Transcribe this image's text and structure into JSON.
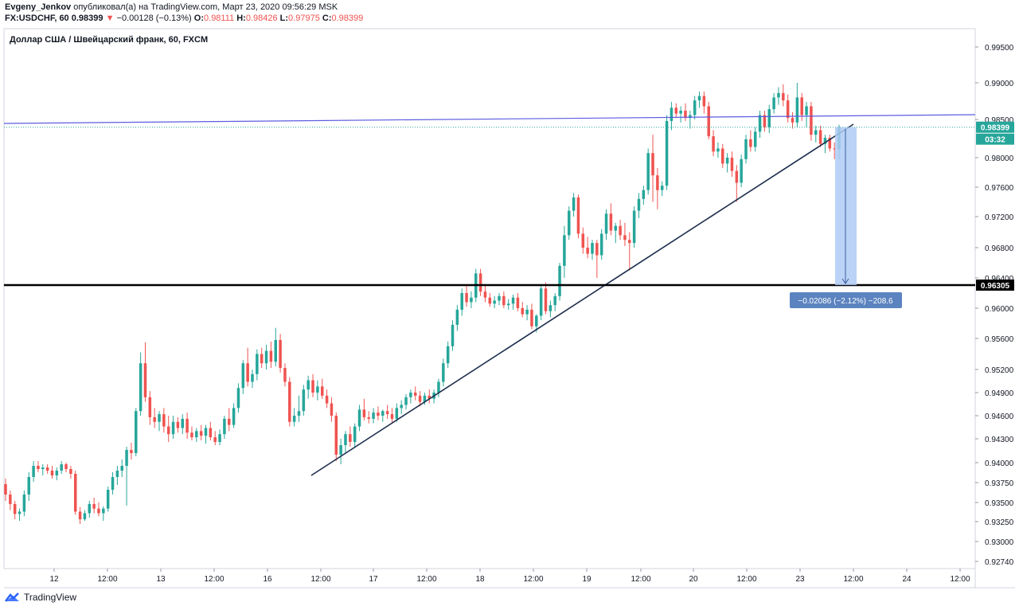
{
  "header": {
    "author": "Evgeny_Jenkov",
    "published_text": "опубликовал(а) на TradingView.com, Март 23, 2020 09:56:29 MSK",
    "symbol": "FX:USDCHF, 60",
    "last": "0.98399",
    "change_arrow": "▼",
    "change": "−0.00128 (−0.13%)",
    "o_label": "O:",
    "o_value": "0.98111",
    "h_label": "H:",
    "h_value": "0.98426",
    "l_label": "L:",
    "l_value": "0.97975",
    "c_label": "C:",
    "c_value": "0.98399"
  },
  "footer": {
    "brand": "TradingView",
    "logo_icon": "tradingview-logo-icon"
  },
  "colors": {
    "up": "#26a69a",
    "down": "#ef5350",
    "trendline": "#1e2f4d",
    "resistance": "#5c5ce0",
    "support": "#000000",
    "measure_fill": "#aecbf5",
    "measure_label_bg": "#5b83bf"
  },
  "chart_data": {
    "type": "candlestick",
    "title": "Доллар США / Швейцарский франк, 60, FXCM",
    "y_ticks": [
      "0.99500",
      "0.99000",
      "0.98500",
      "0.98000",
      "0.97600",
      "0.97200",
      "0.96800",
      "0.96400",
      "0.96000",
      "0.95600",
      "0.95200",
      "0.94900",
      "0.94600",
      "0.94300",
      "0.94000",
      "0.93750",
      "0.93500",
      "0.93250",
      "0.93000",
      "0.92740"
    ],
    "x_ticks": [
      "12",
      "12:00",
      "13",
      "12:00",
      "16",
      "12:00",
      "17",
      "12:00",
      "18",
      "12:00",
      "19",
      "12:00",
      "20",
      "12:00",
      "23",
      "12:00",
      "24",
      "12:00"
    ],
    "price_badge": "0.98399",
    "countdown_badge": "03:32",
    "support_level": "0.96305",
    "measure_label": "−0.02086 (−2.12%) −208.6",
    "ohlc": [
      [
        0.9373,
        0.938,
        0.9352,
        0.936
      ],
      [
        0.936,
        0.9365,
        0.934,
        0.9348
      ],
      [
        0.9348,
        0.9352,
        0.9328,
        0.9335
      ],
      [
        0.9335,
        0.9342,
        0.9326,
        0.9338
      ],
      [
        0.9338,
        0.9365,
        0.9332,
        0.936
      ],
      [
        0.936,
        0.9388,
        0.9352,
        0.9382
      ],
      [
        0.9382,
        0.9402,
        0.9376,
        0.9396
      ],
      [
        0.9396,
        0.9402,
        0.9388,
        0.9392
      ],
      [
        0.9392,
        0.9398,
        0.9384,
        0.9394
      ],
      [
        0.9394,
        0.9398,
        0.9386,
        0.939
      ],
      [
        0.939,
        0.9396,
        0.938,
        0.9384
      ],
      [
        0.9384,
        0.9394,
        0.9378,
        0.939
      ],
      [
        0.939,
        0.9402,
        0.9386,
        0.9398
      ],
      [
        0.9398,
        0.94,
        0.9388,
        0.9392
      ],
      [
        0.9392,
        0.9396,
        0.938,
        0.9386
      ],
      [
        0.9386,
        0.939,
        0.9334,
        0.9338
      ],
      [
        0.9338,
        0.9344,
        0.9322,
        0.9328
      ],
      [
        0.9328,
        0.934,
        0.9326,
        0.9336
      ],
      [
        0.9336,
        0.9352,
        0.933,
        0.9348
      ],
      [
        0.9348,
        0.9356,
        0.9336,
        0.9342
      ],
      [
        0.9342,
        0.935,
        0.9332,
        0.9336
      ],
      [
        0.9336,
        0.9345,
        0.9326,
        0.9342
      ],
      [
        0.9342,
        0.937,
        0.9338,
        0.9366
      ],
      [
        0.9366,
        0.9388,
        0.936,
        0.9382
      ],
      [
        0.9382,
        0.9396,
        0.9372,
        0.939
      ],
      [
        0.939,
        0.9404,
        0.9382,
        0.9396
      ],
      [
        0.9396,
        0.942,
        0.9346,
        0.9416
      ],
      [
        0.9416,
        0.9425,
        0.9404,
        0.9412
      ],
      [
        0.9412,
        0.947,
        0.9408,
        0.9466
      ],
      [
        0.9466,
        0.9542,
        0.946,
        0.9528
      ],
      [
        0.9528,
        0.9555,
        0.9478,
        0.9484
      ],
      [
        0.9484,
        0.9492,
        0.9448,
        0.9458
      ],
      [
        0.9458,
        0.947,
        0.9444,
        0.9452
      ],
      [
        0.9452,
        0.9466,
        0.944,
        0.9462
      ],
      [
        0.9462,
        0.947,
        0.9438,
        0.9446
      ],
      [
        0.9446,
        0.946,
        0.9426,
        0.9436
      ],
      [
        0.9436,
        0.946,
        0.943,
        0.9452
      ],
      [
        0.9452,
        0.9458,
        0.9438,
        0.9444
      ],
      [
        0.9444,
        0.9462,
        0.9436,
        0.9456
      ],
      [
        0.9456,
        0.9464,
        0.943,
        0.9438
      ],
      [
        0.9438,
        0.9446,
        0.9428,
        0.9432
      ],
      [
        0.9432,
        0.9444,
        0.9426,
        0.944
      ],
      [
        0.944,
        0.9448,
        0.9428,
        0.9434
      ],
      [
        0.9434,
        0.9448,
        0.9424,
        0.9444
      ],
      [
        0.9444,
        0.9452,
        0.9428,
        0.9432
      ],
      [
        0.9432,
        0.944,
        0.9422,
        0.9426
      ],
      [
        0.9426,
        0.9442,
        0.9422,
        0.9436
      ],
      [
        0.9436,
        0.946,
        0.943,
        0.9456
      ],
      [
        0.9456,
        0.947,
        0.944,
        0.9448
      ],
      [
        0.9448,
        0.9476,
        0.9444,
        0.947
      ],
      [
        0.947,
        0.9502,
        0.9464,
        0.9496
      ],
      [
        0.9496,
        0.9532,
        0.9488,
        0.9528
      ],
      [
        0.9528,
        0.9548,
        0.9498,
        0.9504
      ],
      [
        0.9504,
        0.952,
        0.9496,
        0.9514
      ],
      [
        0.9514,
        0.9546,
        0.9506,
        0.954
      ],
      [
        0.954,
        0.9548,
        0.9522,
        0.9528
      ],
      [
        0.9528,
        0.9552,
        0.952,
        0.9544
      ],
      [
        0.9544,
        0.9556,
        0.9522,
        0.953
      ],
      [
        0.953,
        0.9574,
        0.9524,
        0.9558
      ],
      [
        0.9558,
        0.9566,
        0.9516,
        0.9522
      ],
      [
        0.9522,
        0.9528,
        0.9498,
        0.9504
      ],
      [
        0.9504,
        0.951,
        0.9446,
        0.9452
      ],
      [
        0.9452,
        0.947,
        0.9446,
        0.946
      ],
      [
        0.946,
        0.9486,
        0.9452,
        0.9466
      ],
      [
        0.9466,
        0.95,
        0.946,
        0.9494
      ],
      [
        0.9494,
        0.9512,
        0.9482,
        0.9506
      ],
      [
        0.9506,
        0.9514,
        0.9484,
        0.949
      ],
      [
        0.949,
        0.9506,
        0.948,
        0.9498
      ],
      [
        0.9498,
        0.9508,
        0.9482,
        0.9486
      ],
      [
        0.9486,
        0.9494,
        0.947,
        0.9476
      ],
      [
        0.9476,
        0.9484,
        0.9452,
        0.946
      ],
      [
        0.946,
        0.9464,
        0.9402,
        0.941
      ],
      [
        0.941,
        0.943,
        0.9398,
        0.9422
      ],
      [
        0.9422,
        0.944,
        0.9412,
        0.9436
      ],
      [
        0.9436,
        0.9446,
        0.942,
        0.9426
      ],
      [
        0.9426,
        0.945,
        0.942,
        0.9446
      ],
      [
        0.9446,
        0.9474,
        0.944,
        0.9468
      ],
      [
        0.9468,
        0.9482,
        0.9454,
        0.9458
      ],
      [
        0.9458,
        0.9466,
        0.945,
        0.9456
      ],
      [
        0.9456,
        0.947,
        0.945,
        0.9464
      ],
      [
        0.9464,
        0.9472,
        0.9454,
        0.946
      ],
      [
        0.946,
        0.9468,
        0.9452,
        0.9466
      ],
      [
        0.9466,
        0.9474,
        0.9456,
        0.9462
      ],
      [
        0.9462,
        0.947,
        0.945,
        0.9456
      ],
      [
        0.9456,
        0.9476,
        0.9452,
        0.947
      ],
      [
        0.947,
        0.948,
        0.9462,
        0.9474
      ],
      [
        0.9474,
        0.9488,
        0.9468,
        0.9484
      ],
      [
        0.9484,
        0.9494,
        0.9476,
        0.949
      ],
      [
        0.949,
        0.9498,
        0.948,
        0.9486
      ],
      [
        0.9486,
        0.9492,
        0.9472,
        0.9478
      ],
      [
        0.9478,
        0.949,
        0.9474,
        0.9486
      ],
      [
        0.9486,
        0.9494,
        0.9476,
        0.9482
      ],
      [
        0.9482,
        0.9494,
        0.9476,
        0.949
      ],
      [
        0.949,
        0.9508,
        0.9484,
        0.9504
      ],
      [
        0.9504,
        0.9534,
        0.9498,
        0.9528
      ],
      [
        0.9528,
        0.9556,
        0.9522,
        0.955
      ],
      [
        0.955,
        0.9584,
        0.9544,
        0.9578
      ],
      [
        0.9578,
        0.9604,
        0.957,
        0.9598
      ],
      [
        0.9598,
        0.9626,
        0.959,
        0.962
      ],
      [
        0.962,
        0.963,
        0.9602,
        0.9608
      ],
      [
        0.9608,
        0.9622,
        0.96,
        0.9614
      ],
      [
        0.9614,
        0.9652,
        0.9608,
        0.9646
      ],
      [
        0.9646,
        0.9652,
        0.9616,
        0.9622
      ],
      [
        0.9622,
        0.9632,
        0.9608,
        0.9614
      ],
      [
        0.9614,
        0.962,
        0.9602,
        0.9606
      ],
      [
        0.9606,
        0.9616,
        0.96,
        0.961
      ],
      [
        0.961,
        0.962,
        0.9604,
        0.9616
      ],
      [
        0.9616,
        0.9622,
        0.96,
        0.9604
      ],
      [
        0.9604,
        0.9612,
        0.9598,
        0.9606
      ],
      [
        0.9606,
        0.9618,
        0.9598,
        0.9614
      ],
      [
        0.9614,
        0.962,
        0.9596,
        0.96
      ],
      [
        0.96,
        0.9608,
        0.9588,
        0.9592
      ],
      [
        0.9592,
        0.9604,
        0.9584,
        0.9598
      ],
      [
        0.9598,
        0.9606,
        0.9572,
        0.9576
      ],
      [
        0.9576,
        0.9592,
        0.9568,
        0.959
      ],
      [
        0.959,
        0.963,
        0.9584,
        0.9626
      ],
      [
        0.9626,
        0.9634,
        0.9592,
        0.9596
      ],
      [
        0.9596,
        0.961,
        0.9588,
        0.9604
      ],
      [
        0.9604,
        0.962,
        0.9596,
        0.9616
      ],
      [
        0.9616,
        0.966,
        0.961,
        0.9656
      ],
      [
        0.9656,
        0.9708,
        0.964,
        0.9696
      ],
      [
        0.9696,
        0.9734,
        0.969,
        0.9728
      ],
      [
        0.9728,
        0.9752,
        0.972,
        0.9746
      ],
      [
        0.9746,
        0.975,
        0.9692,
        0.9698
      ],
      [
        0.9698,
        0.9706,
        0.9672,
        0.968
      ],
      [
        0.968,
        0.9694,
        0.9666,
        0.9672
      ],
      [
        0.9672,
        0.969,
        0.9664,
        0.9686
      ],
      [
        0.9686,
        0.969,
        0.964,
        0.967
      ],
      [
        0.967,
        0.9704,
        0.9664,
        0.9698
      ],
      [
        0.9698,
        0.973,
        0.969,
        0.9724
      ],
      [
        0.9724,
        0.9738,
        0.9696,
        0.9702
      ],
      [
        0.9702,
        0.9712,
        0.9686,
        0.9708
      ],
      [
        0.9708,
        0.9716,
        0.969,
        0.9696
      ],
      [
        0.9696,
        0.9712,
        0.9682,
        0.969
      ],
      [
        0.969,
        0.97,
        0.965,
        0.9686
      ],
      [
        0.9686,
        0.9734,
        0.968,
        0.9728
      ],
      [
        0.9728,
        0.9752,
        0.9718,
        0.9744
      ],
      [
        0.9744,
        0.9762,
        0.9736,
        0.9756
      ],
      [
        0.9756,
        0.9812,
        0.975,
        0.9806
      ],
      [
        0.9806,
        0.983,
        0.974,
        0.9776
      ],
      [
        0.9776,
        0.9786,
        0.973,
        0.9756
      ],
      [
        0.9756,
        0.9768,
        0.9748,
        0.9762
      ],
      [
        0.9762,
        0.9856,
        0.9756,
        0.9848
      ],
      [
        0.9848,
        0.9874,
        0.9836,
        0.9866
      ],
      [
        0.9866,
        0.9872,
        0.9852,
        0.9858
      ],
      [
        0.9858,
        0.9868,
        0.9846,
        0.9862
      ],
      [
        0.9862,
        0.9872,
        0.9848,
        0.9852
      ],
      [
        0.9852,
        0.9862,
        0.9838,
        0.9856
      ],
      [
        0.9856,
        0.9882,
        0.985,
        0.9876
      ],
      [
        0.9876,
        0.9888,
        0.9866,
        0.9882
      ],
      [
        0.9882,
        0.9888,
        0.9858,
        0.9868
      ],
      [
        0.9868,
        0.9874,
        0.9824,
        0.9828
      ],
      [
        0.9828,
        0.9836,
        0.9802,
        0.9808
      ],
      [
        0.9808,
        0.982,
        0.98,
        0.9812
      ],
      [
        0.9812,
        0.9818,
        0.9786,
        0.9792
      ],
      [
        0.9792,
        0.9806,
        0.978,
        0.98
      ],
      [
        0.98,
        0.9808,
        0.9774,
        0.9782
      ],
      [
        0.9782,
        0.979,
        0.974,
        0.9766
      ],
      [
        0.9766,
        0.9804,
        0.976,
        0.9798
      ],
      [
        0.9798,
        0.983,
        0.9792,
        0.9824
      ],
      [
        0.9824,
        0.9836,
        0.9808,
        0.9814
      ],
      [
        0.9814,
        0.984,
        0.9808,
        0.9834
      ],
      [
        0.9834,
        0.9862,
        0.9826,
        0.9856
      ],
      [
        0.9856,
        0.9862,
        0.9834,
        0.984
      ],
      [
        0.984,
        0.987,
        0.9832,
        0.9864
      ],
      [
        0.9864,
        0.9886,
        0.9858,
        0.988
      ],
      [
        0.988,
        0.9894,
        0.987,
        0.9886
      ],
      [
        0.9886,
        0.9898,
        0.9868,
        0.9876
      ],
      [
        0.9876,
        0.9884,
        0.9846,
        0.9852
      ],
      [
        0.9852,
        0.986,
        0.9838,
        0.9846
      ],
      [
        0.9846,
        0.99,
        0.984,
        0.988
      ],
      [
        0.988,
        0.9886,
        0.9848,
        0.9856
      ],
      [
        0.9856,
        0.9874,
        0.984,
        0.9868
      ],
      [
        0.9868,
        0.9874,
        0.9822,
        0.983
      ],
      [
        0.983,
        0.9842,
        0.982,
        0.9836
      ],
      [
        0.9836,
        0.9842,
        0.9814,
        0.9818
      ],
      [
        0.9818,
        0.983,
        0.9806,
        0.9826
      ],
      [
        0.9826,
        0.983,
        0.9808,
        0.9812
      ],
      [
        0.9812,
        0.982,
        0.9798,
        0.9811
      ],
      [
        0.9811,
        0.9843,
        0.9798,
        0.984
      ]
    ]
  }
}
